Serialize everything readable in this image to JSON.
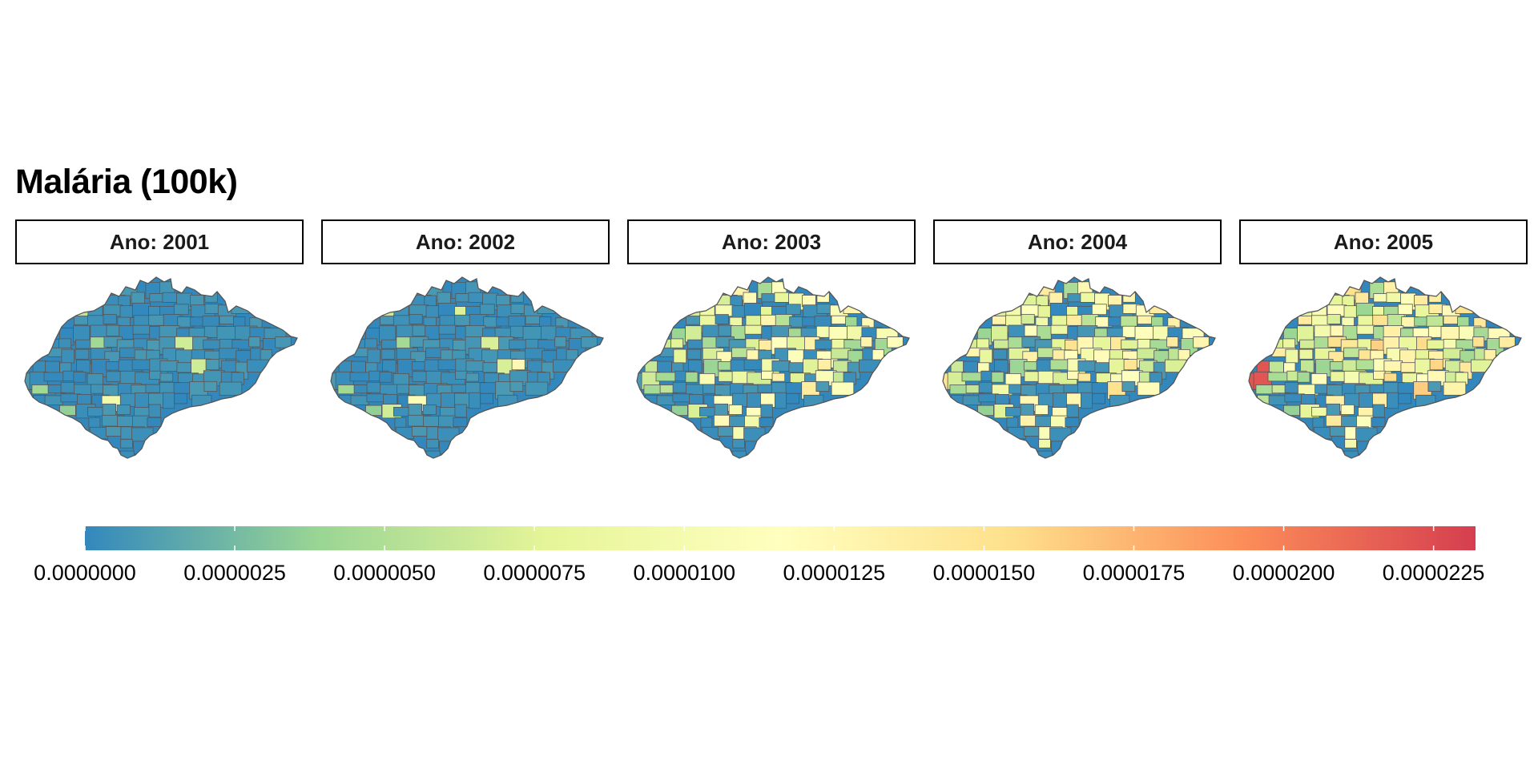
{
  "title": "Malária (100k)",
  "facets": [
    {
      "label": "Ano: 2001",
      "year": 2001
    },
    {
      "label": "Ano: 2002",
      "year": 2002
    },
    {
      "label": "Ano: 2003",
      "year": 2003
    },
    {
      "label": "Ano: 2004",
      "year": 2004
    },
    {
      "label": "Ano: 2005",
      "year": 2005
    }
  ],
  "legend": {
    "min": 0,
    "max": 2.32e-05,
    "palette": [
      "#3288bd",
      "#99d594",
      "#e6f598",
      "#ffffbf",
      "#fee08b",
      "#fc8d59",
      "#d53e4f"
    ],
    "tick_values": [
      0,
      2.5e-06,
      5e-06,
      7.5e-06,
      1e-05,
      1.25e-05,
      1.5e-05,
      1.75e-05,
      2e-05,
      2.25e-05
    ],
    "tick_labels": [
      "0.0000000",
      "0.0000025",
      "0.0000050",
      "0.0000075",
      "0.0000100",
      "0.0000125",
      "0.0000150",
      "0.0000175",
      "0.0000200",
      "0.0000225"
    ]
  },
  "colors": {
    "low": "#3288bd",
    "mid": "#ffffbf",
    "high": "#d53e4f",
    "border": "#555555"
  }
}
